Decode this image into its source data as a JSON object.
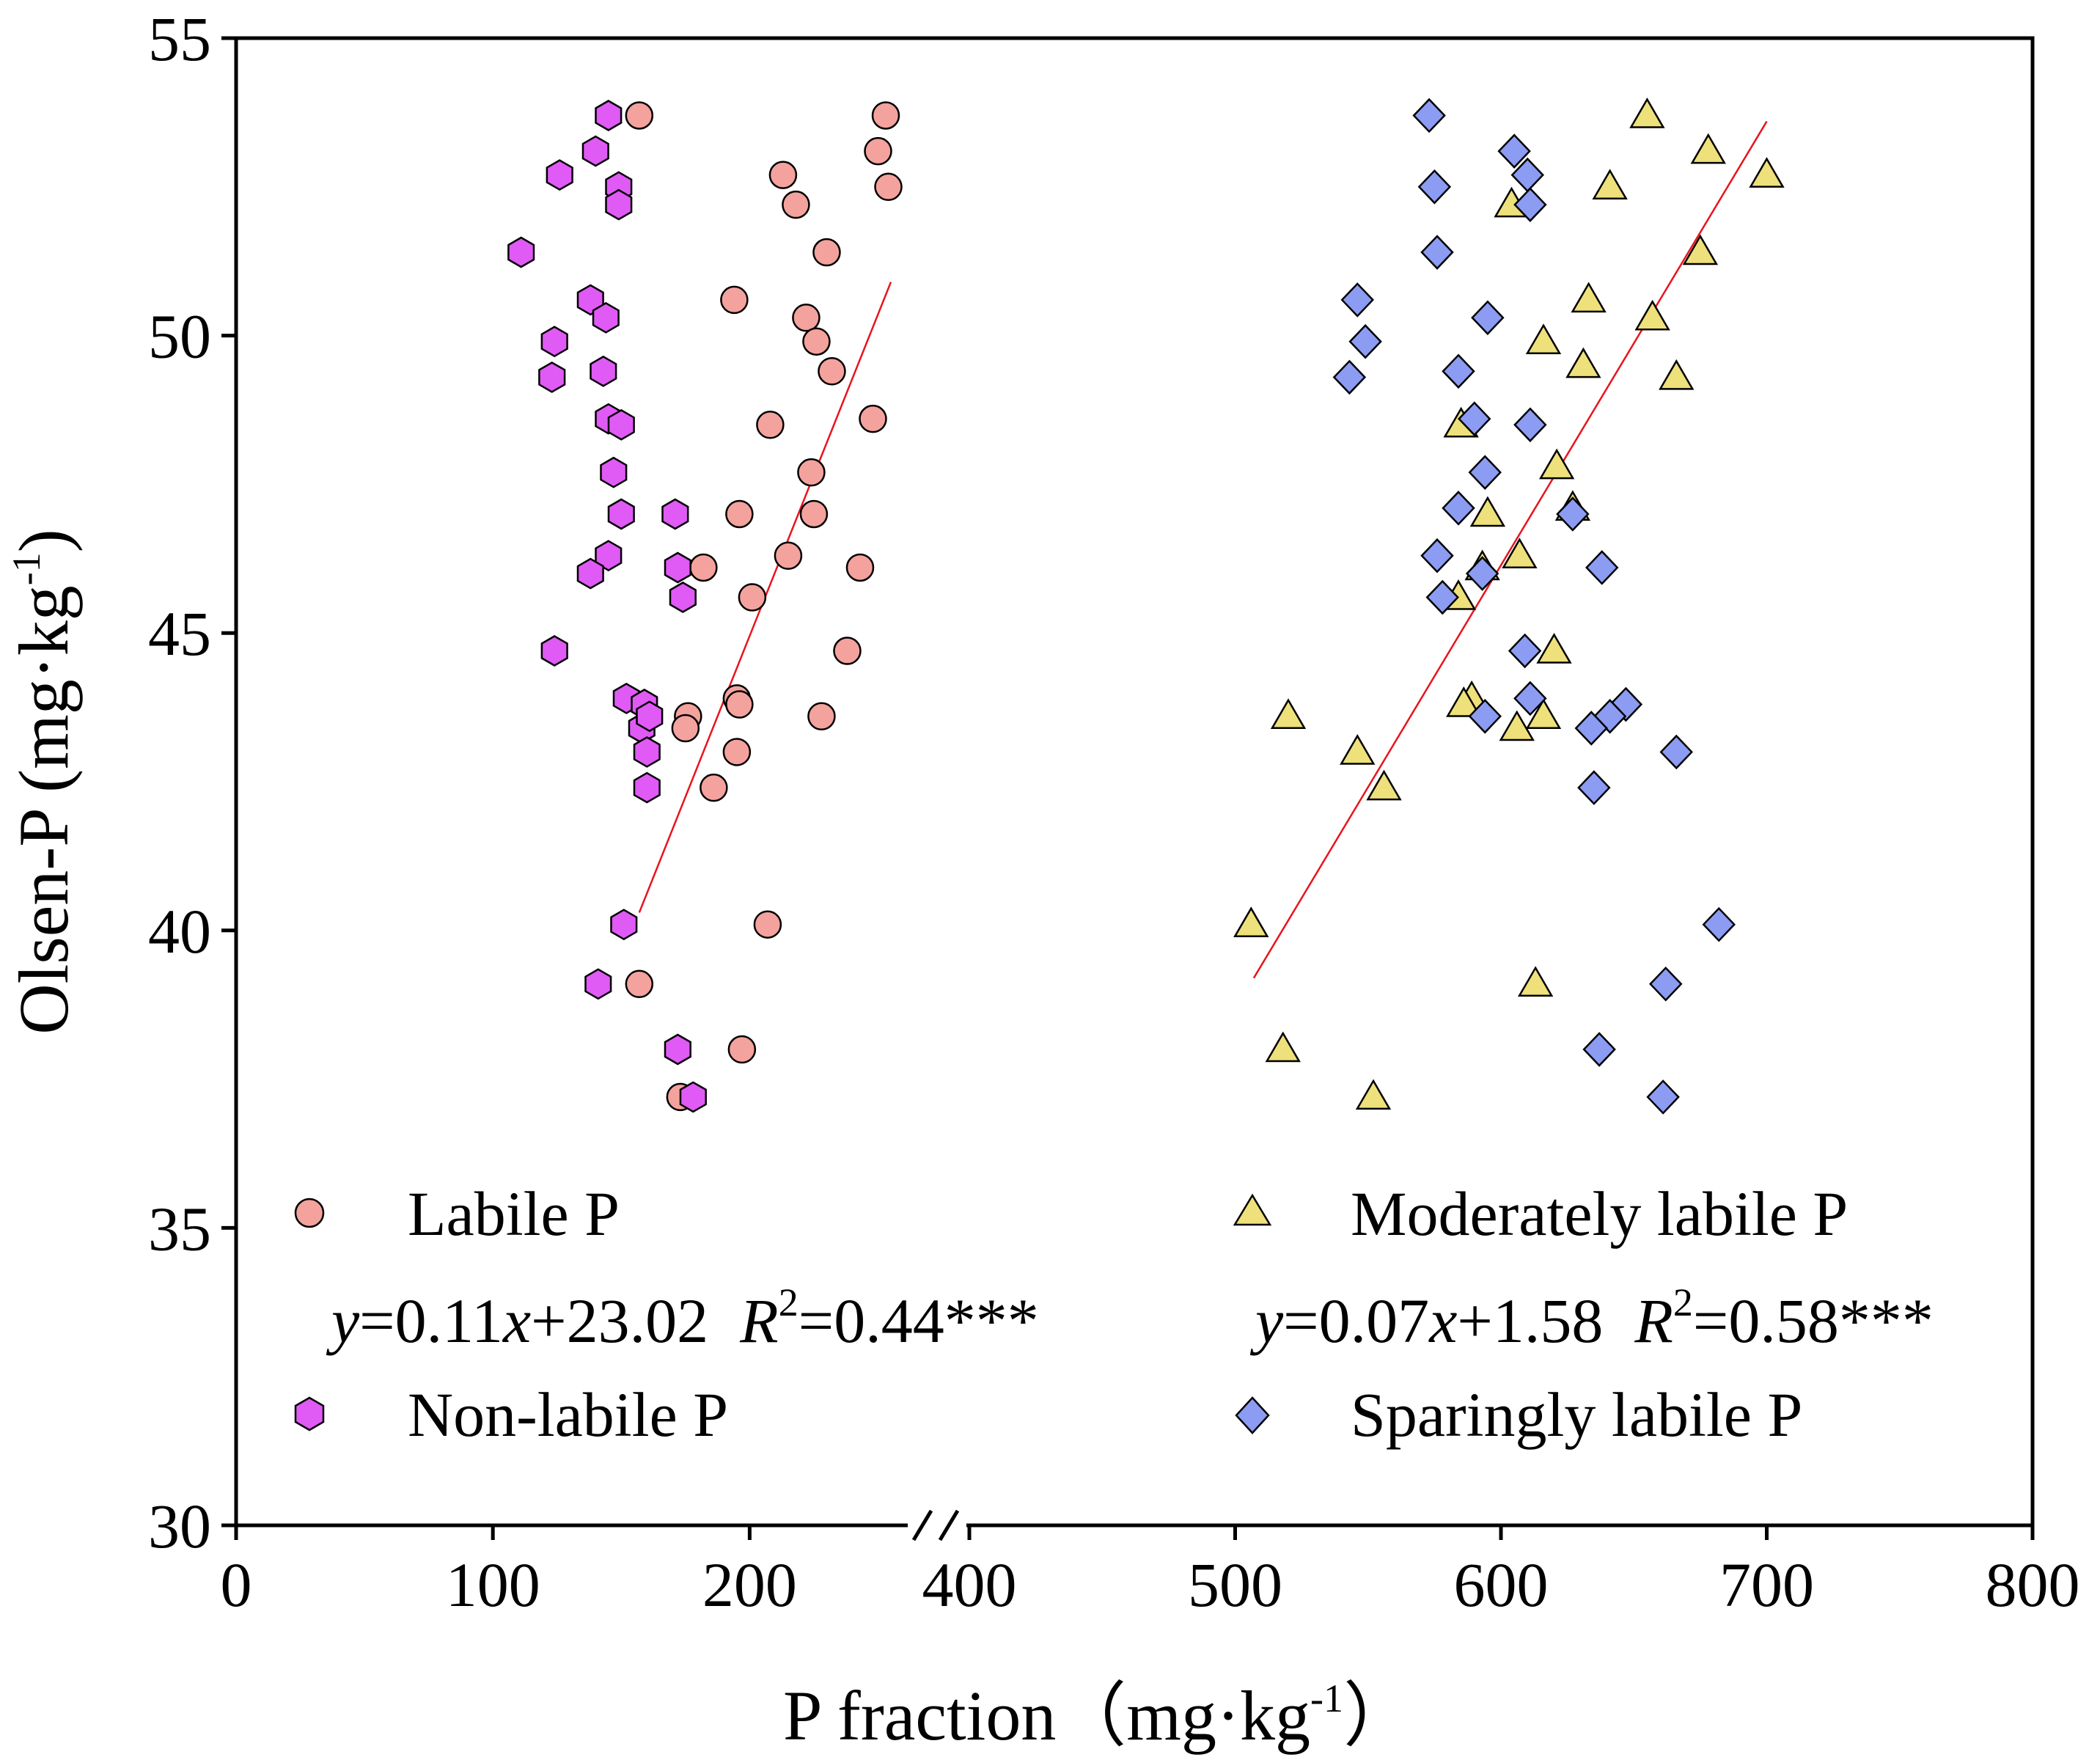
{
  "chart_data": {
    "type": "scatter",
    "xlabel": "P fraction",
    "xlabel_unit": "（mg·kg",
    "xlabel_unit_sup": "-1",
    "xlabel_unit_end": "）",
    "ylabel": "Olsen-P (mg·kg",
    "ylabel_sup": "-1",
    "ylabel_end": ")",
    "ylim": [
      30,
      55
    ],
    "yticks": [
      30,
      35,
      40,
      45,
      50,
      55
    ],
    "xticks_left": [
      0,
      100,
      200
    ],
    "xticks_right": [
      400,
      500,
      600,
      700,
      800
    ],
    "x_break": {
      "left_range": [
        0,
        255
      ],
      "right_range": [
        400,
        800
      ]
    },
    "series": [
      {
        "name": "Labile P",
        "marker": "circle",
        "color": "#F4A29D",
        "group": "left",
        "points": [
          [
            157,
            53.7
          ],
          [
            208,
            48.5
          ],
          [
            213,
            52.7
          ],
          [
            218,
            52.2
          ],
          [
            222,
            50.3
          ],
          [
            226,
            49.9
          ],
          [
            232,
            49.4
          ],
          [
            250,
            53.1
          ],
          [
            253,
            53.7
          ],
          [
            254,
            52.5
          ],
          [
            248,
            48.6
          ],
          [
            230,
            51.4
          ],
          [
            196,
            47.0
          ],
          [
            225,
            47.0
          ],
          [
            224,
            47.7
          ],
          [
            215,
            46.3
          ],
          [
            243,
            46.1
          ],
          [
            182,
            46.1
          ],
          [
            201,
            45.6
          ],
          [
            194,
            50.6
          ],
          [
            238,
            44.7
          ],
          [
            195,
            43.9
          ],
          [
            196,
            43.8
          ],
          [
            176,
            43.6
          ],
          [
            175,
            43.4
          ],
          [
            228,
            43.6
          ],
          [
            195,
            43.0
          ],
          [
            186,
            42.4
          ],
          [
            207,
            40.1
          ],
          [
            157,
            39.1
          ],
          [
            197,
            38.0
          ],
          [
            173,
            37.2
          ]
        ]
      },
      {
        "name": "Non-labile P",
        "marker": "hexagon",
        "color": "#E05AF5",
        "group": "left",
        "points": [
          [
            145,
            53.7
          ],
          [
            140,
            53.1
          ],
          [
            149,
            52.5
          ],
          [
            126,
            52.7
          ],
          [
            149,
            52.2
          ],
          [
            111,
            51.4
          ],
          [
            138,
            50.6
          ],
          [
            144,
            50.3
          ],
          [
            124,
            49.9
          ],
          [
            123,
            49.3
          ],
          [
            143,
            49.4
          ],
          [
            145,
            48.6
          ],
          [
            150,
            48.5
          ],
          [
            147,
            47.7
          ],
          [
            150,
            47.0
          ],
          [
            171,
            47.0
          ],
          [
            145,
            46.3
          ],
          [
            138,
            46.0
          ],
          [
            172,
            46.1
          ],
          [
            174,
            45.6
          ],
          [
            124,
            44.7
          ],
          [
            152,
            43.9
          ],
          [
            159,
            43.8
          ],
          [
            158,
            43.4
          ],
          [
            161,
            43.6
          ],
          [
            160,
            43.0
          ],
          [
            160,
            42.4
          ],
          [
            151,
            40.1
          ],
          [
            141,
            39.1
          ],
          [
            172,
            38.0
          ],
          [
            178,
            37.2
          ]
        ]
      },
      {
        "name": "Moderately labile P",
        "marker": "triangle",
        "color": "#EEE07A",
        "group": "right",
        "points": [
          [
            655,
            53.7
          ],
          [
            678,
            53.1
          ],
          [
            700,
            52.7
          ],
          [
            641,
            52.5
          ],
          [
            604,
            52.2
          ],
          [
            675,
            51.4
          ],
          [
            633,
            50.6
          ],
          [
            657,
            50.3
          ],
          [
            616,
            49.9
          ],
          [
            631,
            49.5
          ],
          [
            666,
            49.3
          ],
          [
            585,
            48.5
          ],
          [
            621,
            47.8
          ],
          [
            627,
            47.1
          ],
          [
            595,
            47.0
          ],
          [
            607,
            46.3
          ],
          [
            593,
            46.1
          ],
          [
            584,
            45.6
          ],
          [
            620,
            44.7
          ],
          [
            589,
            43.9
          ],
          [
            586,
            43.8
          ],
          [
            520,
            43.6
          ],
          [
            616,
            43.6
          ],
          [
            606,
            43.4
          ],
          [
            546,
            43.0
          ],
          [
            556,
            42.4
          ],
          [
            506,
            40.1
          ],
          [
            613,
            39.1
          ],
          [
            518,
            38.0
          ],
          [
            552,
            37.2
          ]
        ]
      },
      {
        "name": "Sparingly labile P",
        "marker": "diamond",
        "color": "#8C9CF2",
        "group": "right",
        "points": [
          [
            573,
            53.7
          ],
          [
            605,
            53.1
          ],
          [
            610,
            52.7
          ],
          [
            575,
            52.5
          ],
          [
            611,
            52.2
          ],
          [
            576,
            51.4
          ],
          [
            546,
            50.6
          ],
          [
            595,
            50.3
          ],
          [
            549,
            49.9
          ],
          [
            543,
            49.3
          ],
          [
            584,
            49.4
          ],
          [
            590,
            48.6
          ],
          [
            611,
            48.5
          ],
          [
            594,
            47.7
          ],
          [
            584,
            47.1
          ],
          [
            627,
            47.0
          ],
          [
            576,
            46.3
          ],
          [
            593,
            46.0
          ],
          [
            638,
            46.1
          ],
          [
            578,
            45.6
          ],
          [
            609,
            44.7
          ],
          [
            611,
            43.9
          ],
          [
            647,
            43.8
          ],
          [
            594,
            43.6
          ],
          [
            641,
            43.6
          ],
          [
            634,
            43.4
          ],
          [
            666,
            43.0
          ],
          [
            635,
            42.4
          ],
          [
            682,
            40.1
          ],
          [
            662,
            39.1
          ],
          [
            637,
            38.0
          ],
          [
            661,
            37.2
          ]
        ]
      }
    ],
    "fits": [
      {
        "group": "left",
        "x": [
          157,
          255
        ],
        "y": [
          40.3,
          50.9
        ]
      },
      {
        "group": "right",
        "x": [
          507,
          700
        ],
        "y": [
          39.2,
          53.6
        ]
      }
    ],
    "legend": [
      {
        "label": "Labile P",
        "marker": "circle",
        "color": "#F4A29D"
      },
      {
        "label": "Non-labile P",
        "marker": "hexagon",
        "color": "#E05AF5"
      },
      {
        "label": "Moderately labile P",
        "marker": "triangle",
        "color": "#EEE07A"
      },
      {
        "label": "Sparingly labile P",
        "marker": "diamond",
        "color": "#8C9CF2"
      }
    ],
    "equations": [
      {
        "y_var": "y",
        "mid1": "=0.11",
        "x_var": "x",
        "mid2": "+23.02  ",
        "r_var": "R",
        "r_sup": "2",
        "end": "=0.44***"
      },
      {
        "y_var": "y",
        "mid1": "=0.07",
        "x_var": "x",
        "mid2": "+1.58  ",
        "r_var": "R",
        "r_sup": "2",
        "end": "=0.58***"
      }
    ],
    "fit_color": "#E8141E"
  }
}
